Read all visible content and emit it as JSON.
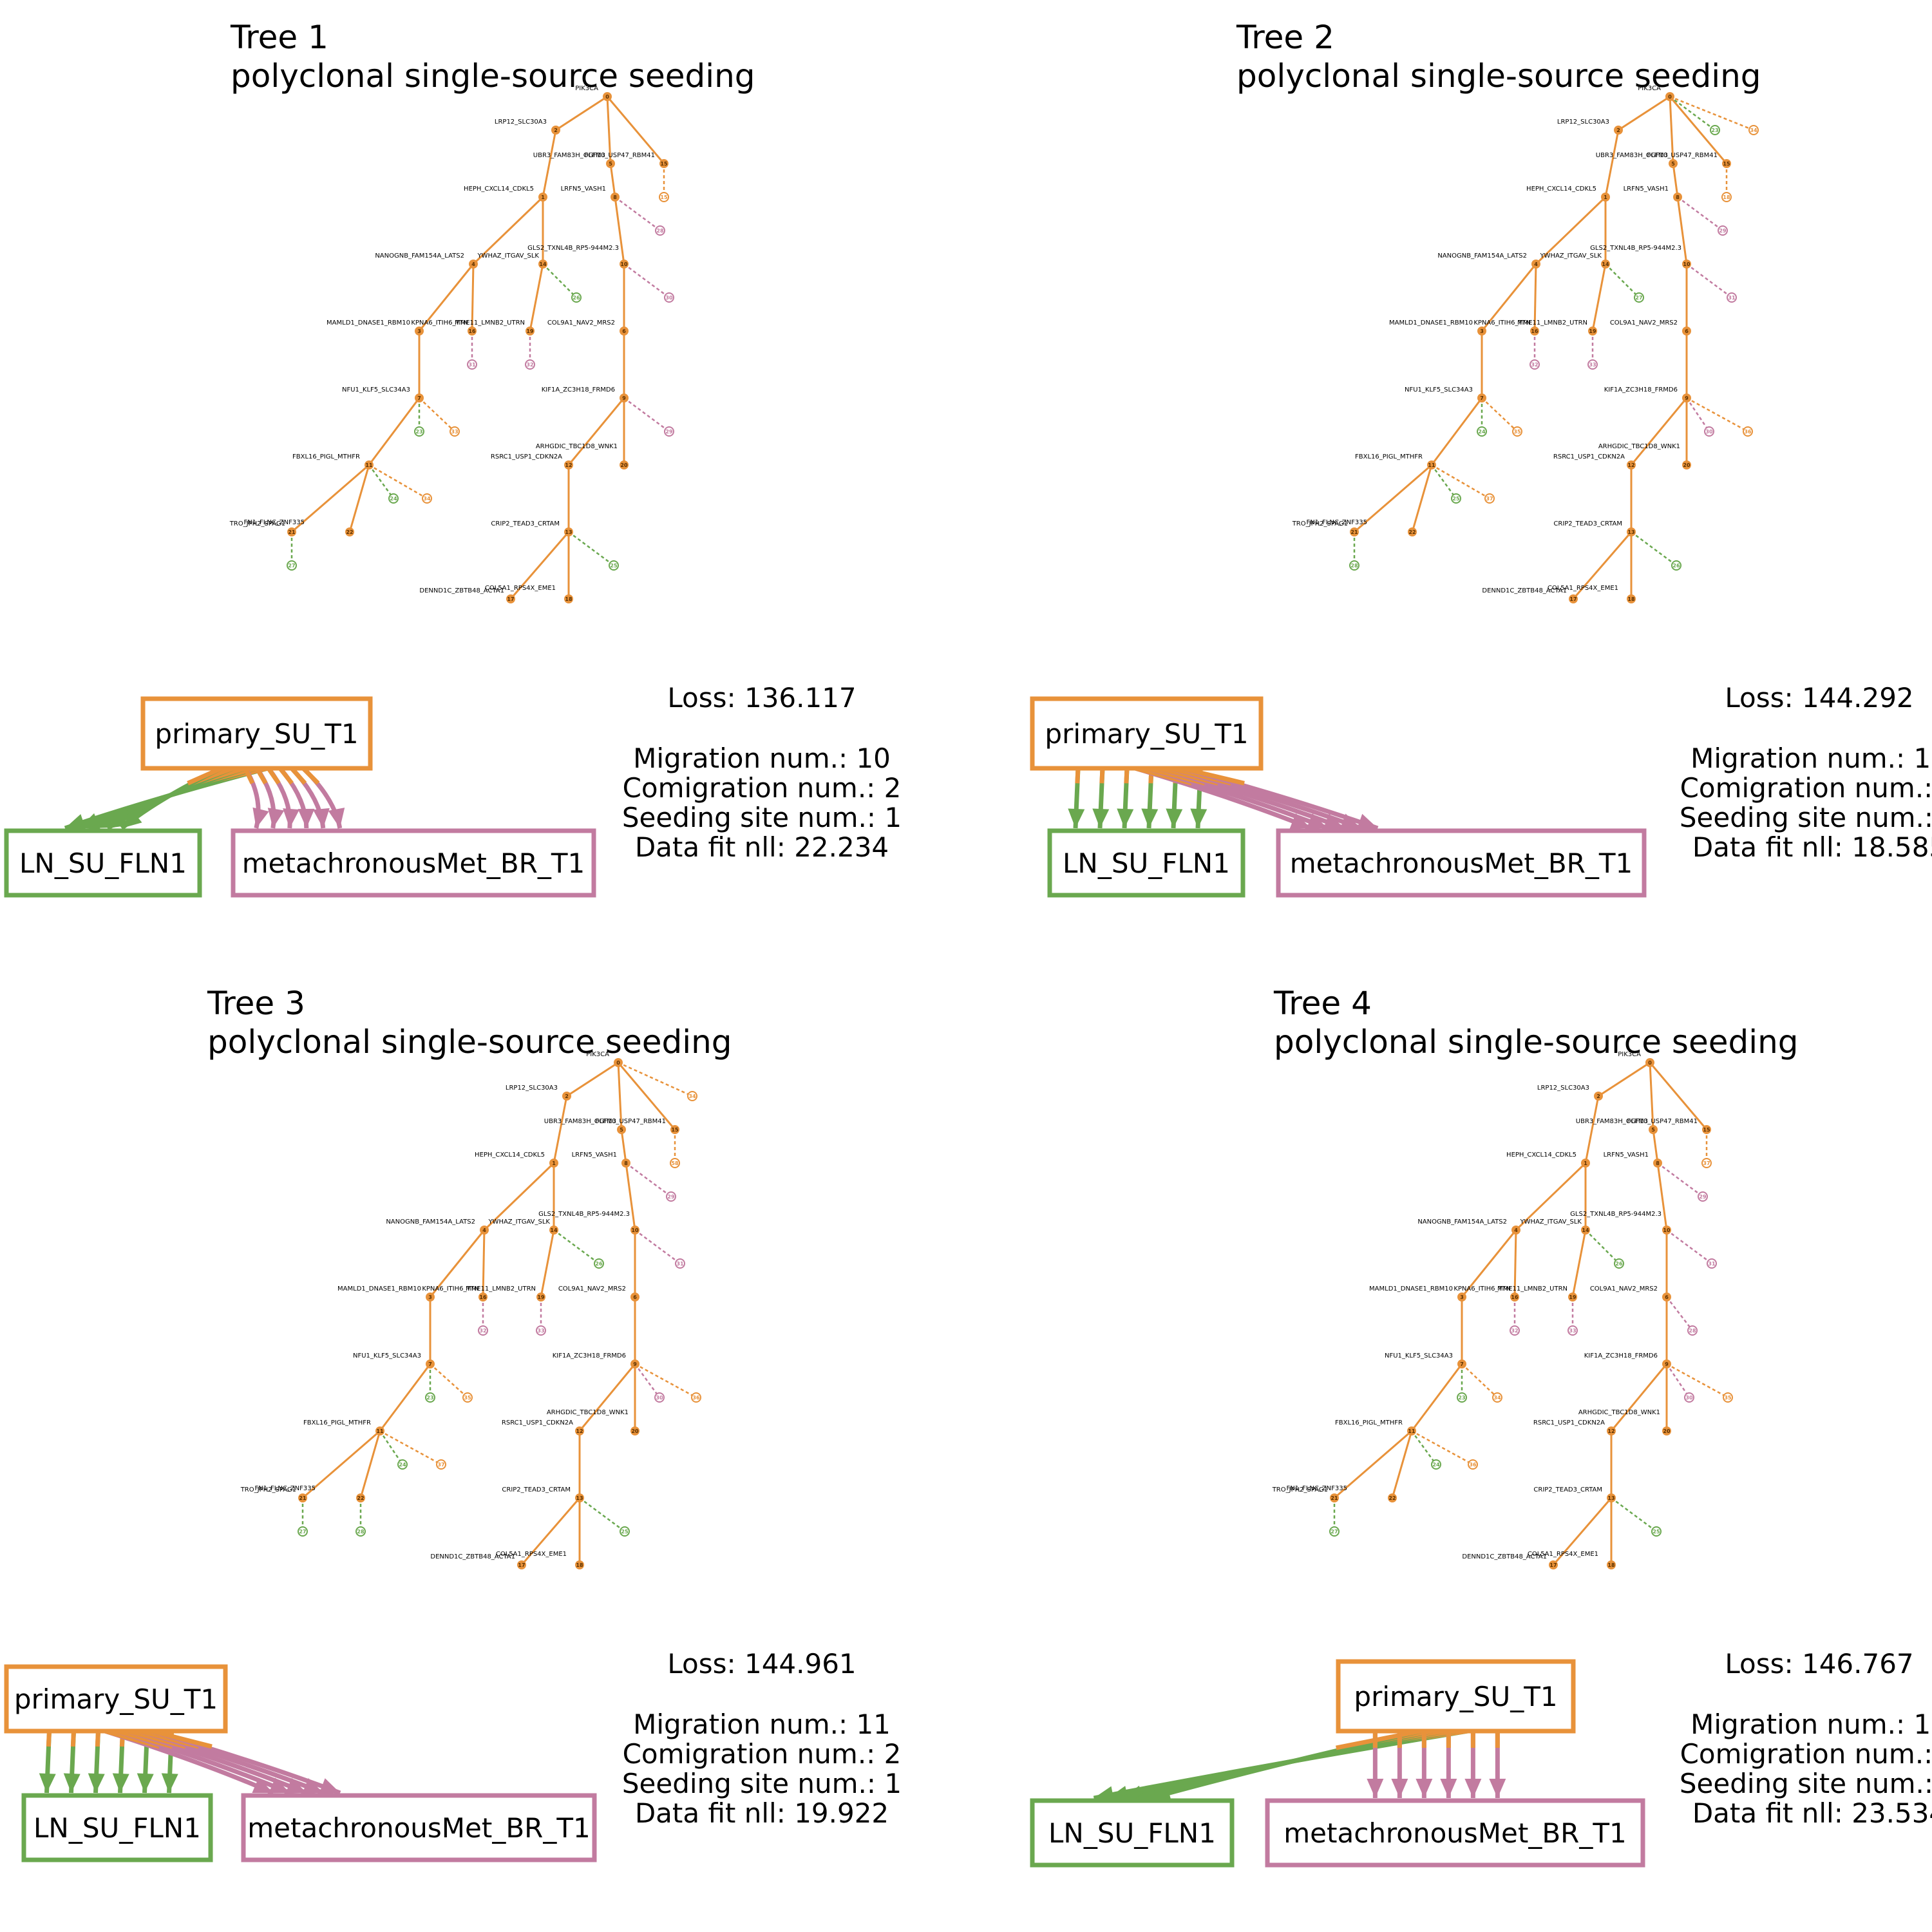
{
  "colors": {
    "primary": "#E8923A",
    "ln": "#6AA84F",
    "met": "#C27BA0",
    "text": "#000000"
  },
  "site_names": {
    "primary": "primary_SU_T1",
    "ln": "LN_SU_FLN1",
    "met": "metachronousMet_BR_T1"
  },
  "stat_labels": {
    "loss": "Loss:",
    "migration": "Migration num.:",
    "comigration": "Comigration num.:",
    "seeding": "Seeding site num.:",
    "fit": "Data fit nll:"
  },
  "subtitle": "polyclonal single-source seeding",
  "trees": [
    {
      "title": "Tree 1",
      "loss": "136.117",
      "migration_num": "10",
      "comigration_num": "2",
      "seeding_site_num": "1",
      "data_fit_nll": "22.234",
      "edges_to_ln": 5,
      "edges_to_met": 6
    },
    {
      "title": "Tree 2",
      "loss": "144.292",
      "migration_num": "11",
      "comigration_num": "2",
      "seeding_site_num": "1",
      "data_fit_nll": "18.585",
      "edges_to_ln": 6,
      "edges_to_met": 5
    },
    {
      "title": "Tree 3",
      "loss": "144.961",
      "migration_num": "11",
      "comigration_num": "2",
      "seeding_site_num": "1",
      "data_fit_nll": "19.922",
      "edges_to_ln": 6,
      "edges_to_met": 5
    },
    {
      "title": "Tree 4",
      "loss": "146.767",
      "migration_num": "11",
      "comigration_num": "2",
      "seeding_site_num": "1",
      "data_fit_nll": "23.534",
      "edges_to_ln": 5,
      "edges_to_met": 6
    }
  ],
  "clone_labels": {
    "0": "PIK3CA",
    "2": "LRP12_SLC30A3",
    "5": "UBR3_FAM83H_OLFM3",
    "15": "FGF10_USP47_RBM41",
    "1": "HEPH_CXCL14_CDKL5",
    "8": "LRFN5_VASH1",
    "4": "NANOGNB_FAM154A_LATS2",
    "14": "YWHAZ_ITGAV_SLK",
    "10": "GLS2_TXNL4B_RP5-944M2.3",
    "3": "MAMLD1_DNASE1_RBM10",
    "16": "KPNA6_ITIH6_TTN",
    "19": "MME11_LMNB2_UTRN",
    "6": "COL9A1_NAV2_MRS2",
    "7": "NFU1_KLF5_SLC34A3",
    "9": "KIF1A_ZC3H18_FRMD6",
    "11": "FBXL16_PIGL_MTHFR",
    "12": "RSRC1_USP1_CDKN2A",
    "20": "ARHGDIC_TBC1D8_WNK1",
    "21": "TRO_JPH2_SPAG1",
    "22": "FN1_FLNC_ZNF335",
    "13": "CRIP2_TEAD3_CRTAM",
    "17": "DENND1C_ZBTB48_ACTA1",
    "18": "COL5A1_RPS4X_EME1"
  },
  "leaf_ids": {
    "tree1": [
      "15",
      "28",
      "26",
      "30",
      "31",
      "32",
      "23",
      "33",
      "29",
      "24",
      "34",
      "27",
      "25"
    ],
    "tree2": [
      "23",
      "34",
      "18",
      "29",
      "27",
      "31",
      "32",
      "33",
      "24",
      "35",
      "30",
      "36",
      "25",
      "37",
      "28",
      "26"
    ],
    "tree3": [
      "34",
      "58",
      "29",
      "26",
      "31",
      "32",
      "33",
      "23",
      "35",
      "30",
      "36",
      "24",
      "37",
      "27",
      "28",
      "25"
    ],
    "tree4": [
      "37",
      "29",
      "26",
      "31",
      "28",
      "32",
      "33",
      "23",
      "34",
      "30",
      "35",
      "24",
      "36",
      "27",
      "25"
    ]
  }
}
